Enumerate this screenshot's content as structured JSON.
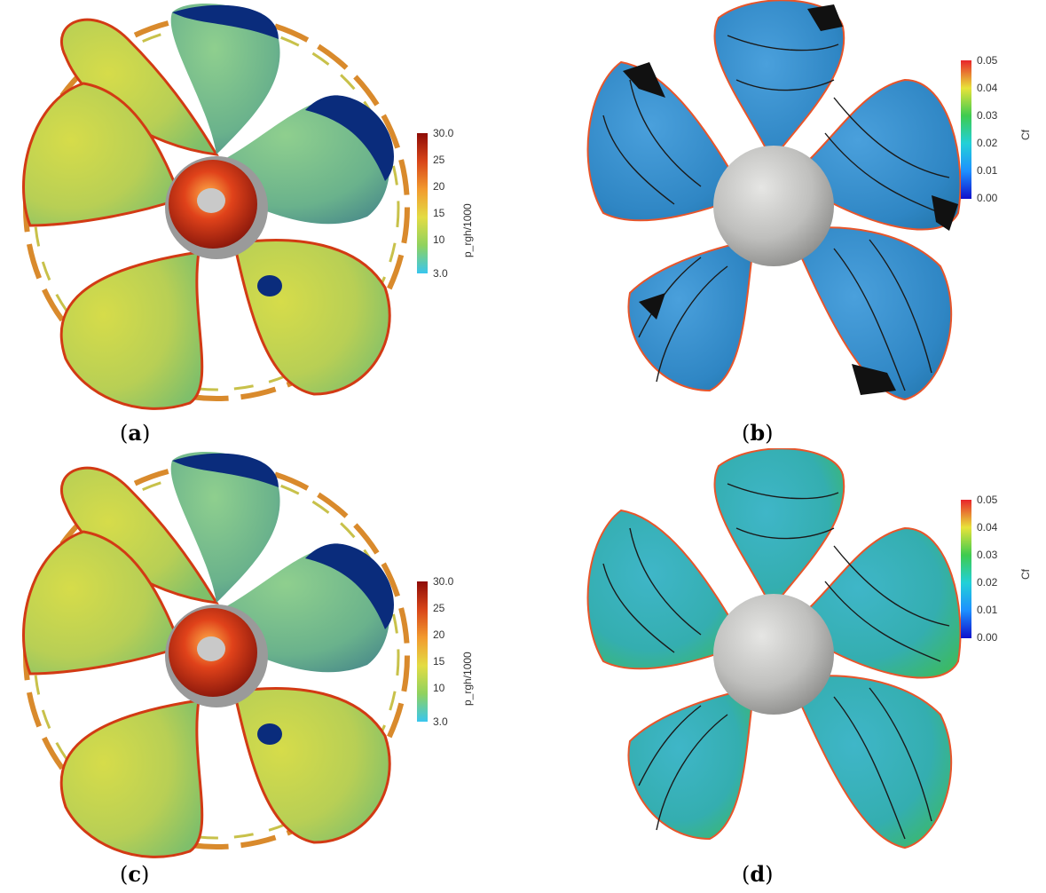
{
  "panels": [
    {
      "id": "a",
      "caption": "a",
      "colorbar": {
        "title": "p_rgh/1000",
        "ticks": [
          "30.0",
          "25",
          "20",
          "15",
          "10",
          "3.0"
        ],
        "colors": [
          "#39c6ee",
          "#8fd25e",
          "#e3dc43",
          "#f29a2e",
          "#d84519",
          "#8e0b06"
        ]
      }
    },
    {
      "id": "b",
      "caption": "b",
      "colorbar": {
        "title": "Cf",
        "ticks": [
          "0.05",
          "0.04",
          "0.03",
          "0.02",
          "0.01",
          "0.00"
        ],
        "colors": [
          "#1010cc",
          "#1e90ff",
          "#22d0d8",
          "#3ecb4f",
          "#e8e33a",
          "#e8242a"
        ]
      }
    },
    {
      "id": "c",
      "caption": "c",
      "colorbar": {
        "title": "p_rgh/1000",
        "ticks": [
          "30.0",
          "25",
          "20",
          "15",
          "10",
          "3.0"
        ],
        "colors": [
          "#39c6ee",
          "#8fd25e",
          "#e3dc43",
          "#f29a2e",
          "#d84519",
          "#8e0b06"
        ]
      }
    },
    {
      "id": "d",
      "caption": "d",
      "colorbar": {
        "title": "Cf",
        "ticks": [
          "0.05",
          "0.04",
          "0.03",
          "0.02",
          "0.01",
          "0.00"
        ],
        "colors": [
          "#1010cc",
          "#1e90ff",
          "#22d0d8",
          "#3ecb4f",
          "#e8e33a",
          "#e8242a"
        ]
      }
    }
  ]
}
